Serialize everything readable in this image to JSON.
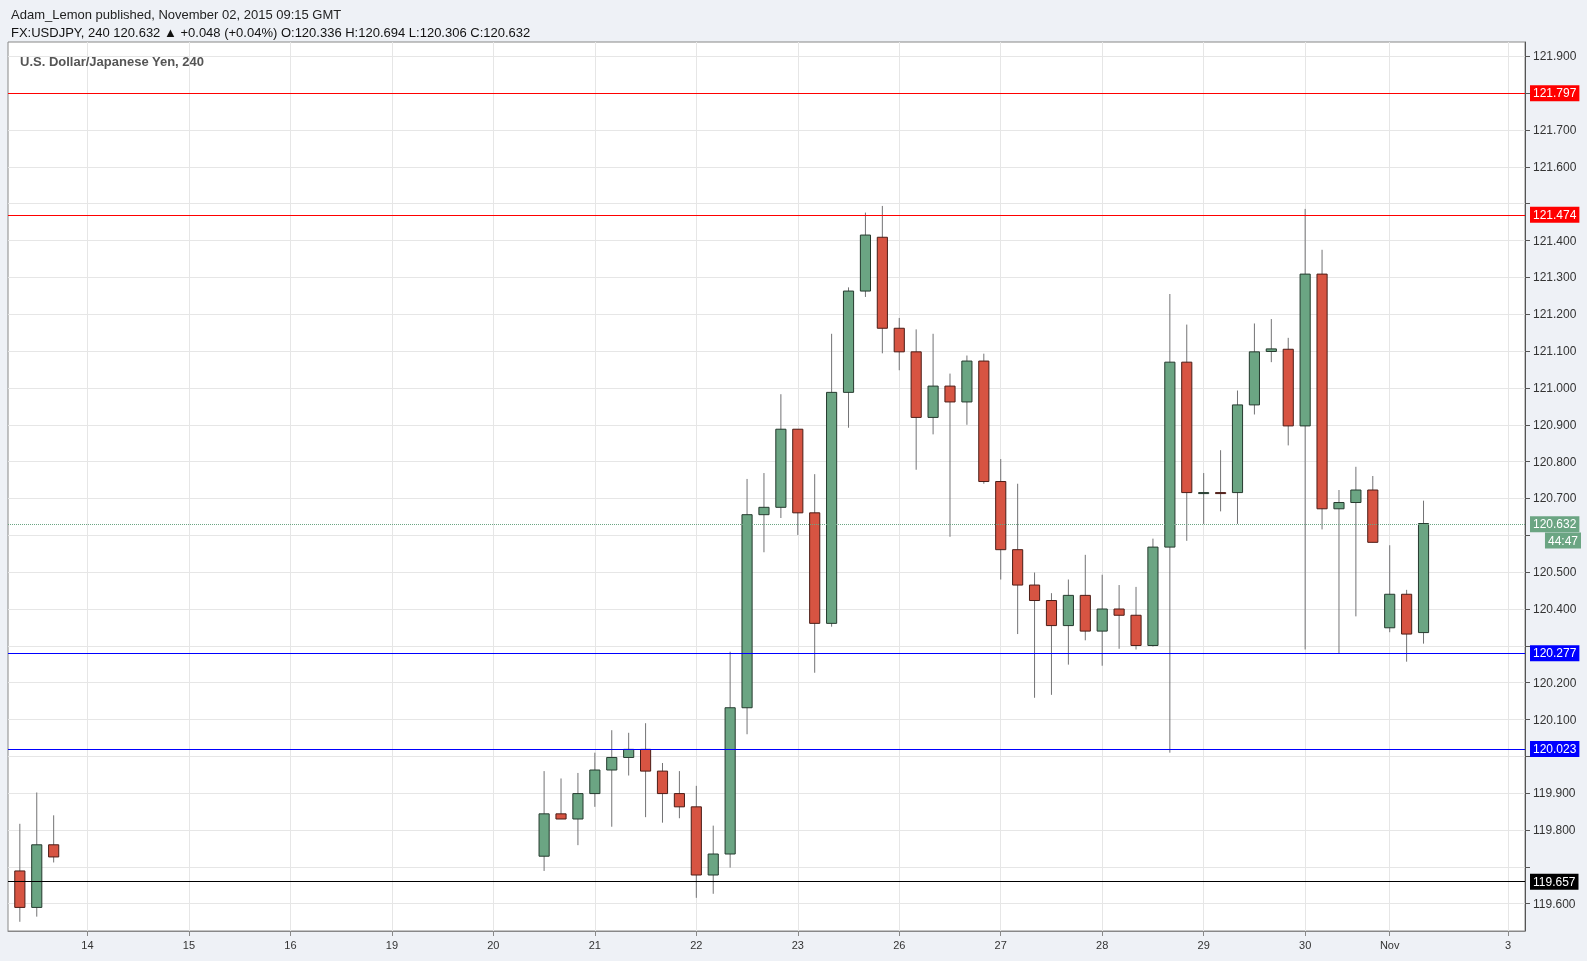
{
  "chart_data": {
    "type": "candlestick",
    "title": "U.S. Dollar/Japanese Yen, 240",
    "subtitle": "FX:USDJPY, 240 120.632 ▲ +0.048 (+0.04%) O:120.336 H:120.694 L:120.306 C:120.632",
    "annotations": [
      "Adam_Lemon published, November 02, 2015 09:15 GMT",
      "44:47"
    ],
    "categories": [
      null,
      null,
      null,
      null,
      "14",
      null,
      null,
      null,
      null,
      null,
      "15",
      null,
      null,
      null,
      null,
      null,
      "16",
      null,
      null,
      null,
      null,
      null,
      "19",
      null,
      null,
      null,
      null,
      null,
      "20",
      null,
      null,
      null,
      null,
      null,
      "21",
      null,
      null,
      null,
      null,
      null,
      "22",
      null,
      null,
      null,
      null,
      null,
      "23",
      null,
      null,
      null,
      null,
      null,
      "26",
      null,
      null,
      null,
      null,
      null,
      "27",
      null,
      null,
      null,
      null,
      null,
      "28",
      null,
      null,
      null,
      null,
      null,
      "29",
      null,
      null,
      null,
      null,
      null,
      "30",
      null,
      null,
      null,
      null,
      "Nov",
      null,
      null,
      null,
      null,
      null,
      null,
      "3"
    ],
    "ohlc": [
      [
        119.689,
        119.817,
        119.551,
        119.59
      ],
      [
        119.59,
        119.902,
        119.565,
        119.76
      ],
      [
        119.76,
        119.84,
        119.712,
        119.727
      ],
      null,
      null,
      null,
      null,
      null,
      null,
      null,
      null,
      null,
      null,
      null,
      null,
      null,
      null,
      null,
      null,
      null,
      null,
      null,
      null,
      null,
      null,
      null,
      null,
      null,
      null,
      null,
      null,
      [
        119.729,
        119.96,
        119.689,
        119.844
      ],
      [
        119.844,
        119.94,
        119.83,
        119.83
      ],
      [
        119.83,
        119.955,
        119.759,
        119.899
      ],
      [
        119.899,
        120.01,
        119.863,
        119.963
      ],
      [
        119.963,
        120.071,
        119.809,
        119.997
      ],
      [
        119.997,
        120.064,
        119.948,
        120.019
      ],
      [
        120.019,
        120.09,
        119.835,
        119.96
      ],
      [
        119.96,
        119.982,
        119.82,
        119.899
      ],
      [
        119.899,
        119.96,
        119.832,
        119.863
      ],
      [
        119.863,
        119.92,
        119.616,
        119.678
      ],
      [
        119.678,
        119.812,
        119.627,
        119.735
      ],
      [
        119.735,
        120.284,
        119.698,
        120.132
      ],
      [
        120.132,
        120.753,
        120.06,
        120.656
      ],
      [
        120.656,
        120.769,
        120.554,
        120.676
      ],
      [
        120.676,
        120.983,
        120.647,
        120.888
      ],
      [
        120.888,
        120.888,
        120.601,
        120.661
      ],
      [
        120.661,
        120.766,
        120.227,
        120.361
      ],
      [
        120.361,
        121.147,
        120.352,
        120.988
      ],
      [
        120.988,
        121.273,
        120.892,
        121.263
      ],
      [
        121.263,
        121.476,
        121.247,
        121.415
      ],
      [
        121.409,
        121.494,
        121.094,
        121.162
      ],
      [
        121.162,
        121.19,
        121.048,
        121.098
      ],
      [
        121.098,
        121.159,
        120.778,
        120.92
      ],
      [
        120.92,
        121.147,
        120.874,
        121.005
      ],
      [
        121.005,
        121.039,
        120.596,
        120.962
      ],
      [
        120.962,
        121.088,
        120.9,
        121.073
      ],
      [
        121.073,
        121.093,
        120.74,
        120.746
      ],
      [
        120.746,
        120.807,
        120.48,
        120.561
      ],
      [
        120.561,
        120.74,
        120.332,
        120.465
      ],
      [
        120.465,
        120.499,
        120.159,
        120.423
      ],
      [
        120.423,
        120.443,
        120.167,
        120.355
      ],
      [
        120.355,
        120.48,
        120.249,
        120.437
      ],
      [
        120.437,
        120.547,
        120.315,
        120.34
      ],
      [
        120.34,
        120.493,
        120.246,
        120.4
      ],
      [
        120.4,
        120.465,
        120.292,
        120.383
      ],
      [
        120.383,
        120.46,
        120.29,
        120.301
      ],
      [
        120.301,
        120.591,
        120.298,
        120.568
      ],
      [
        120.568,
        121.255,
        120.01,
        121.07
      ],
      [
        121.07,
        121.172,
        120.585,
        120.716
      ],
      [
        120.716,
        120.769,
        120.631,
        120.716
      ],
      [
        120.716,
        120.831,
        120.665,
        120.716
      ],
      [
        120.716,
        120.993,
        120.631,
        120.954
      ],
      [
        120.954,
        121.175,
        120.928,
        121.098
      ],
      [
        121.099,
        121.187,
        121.07,
        121.106
      ],
      [
        121.105,
        121.136,
        120.844,
        120.897
      ],
      [
        120.897,
        121.486,
        120.29,
        121.309
      ],
      [
        121.309,
        121.375,
        120.616,
        120.672
      ],
      [
        120.672,
        120.723,
        120.28,
        120.689
      ],
      [
        120.689,
        120.786,
        120.38,
        120.723
      ],
      [
        120.723,
        120.761,
        120.581,
        120.581
      ],
      [
        120.349,
        120.573,
        120.337,
        120.44
      ],
      [
        120.44,
        120.452,
        120.257,
        120.332
      ],
      [
        120.336,
        120.694,
        120.306,
        120.632
      ],
      null,
      null,
      null,
      null,
      null
    ],
    "colors": [
      "#d75442",
      "#6ba583",
      "#d75442",
      null,
      null,
      null,
      null,
      null,
      null,
      null,
      null,
      null,
      null,
      null,
      null,
      null,
      null,
      null,
      null,
      null,
      null,
      null,
      null,
      null,
      null,
      null,
      null,
      null,
      null,
      null,
      null,
      "#6ba583",
      "#d75442",
      "#6ba583",
      "#6ba583",
      "#6ba583",
      "#6ba583",
      "#d75442",
      "#d75442",
      "#d75442",
      "#d75442",
      "#6ba583",
      "#6ba583",
      "#6ba583",
      "#6ba583",
      "#6ba583",
      "#d75442",
      "#d75442",
      "#6ba583",
      "#6ba583",
      "#6ba583",
      "#d75442",
      "#d75442",
      "#d75442",
      "#6ba583",
      "#d75442",
      "#6ba583",
      "#d75442",
      "#d75442",
      "#d75442",
      "#d75442",
      "#d75442",
      "#6ba583",
      "#d75442",
      "#6ba583",
      "#d75442",
      "#d75442",
      "#6ba583",
      "#6ba583",
      "#d75442",
      "#6ba583",
      "#d75442",
      "#6ba583",
      "#6ba583",
      "#6ba583",
      "#d75442",
      "#6ba583",
      "#d75442",
      "#6ba583",
      "#6ba583",
      "#d75442",
      "#6ba583",
      "#d75442",
      "#6ba583",
      null,
      null,
      null,
      null,
      null
    ],
    "ylim": [
      119.526,
      121.939
    ],
    "yticks": [
      {
        "value": 119.6,
        "label": "119.600"
      },
      {
        "value": 119.7,
        "label": null
      },
      {
        "value": 119.8,
        "label": "119.800"
      },
      {
        "value": 119.9,
        "label": "119.900"
      },
      {
        "value": 120.0,
        "label": null
      },
      {
        "value": 120.1,
        "label": "120.100"
      },
      {
        "value": 120.2,
        "label": "120.200"
      },
      {
        "value": 120.3,
        "label": null
      },
      {
        "value": 120.4,
        "label": "120.400"
      },
      {
        "value": 120.5,
        "label": "120.500"
      },
      {
        "value": 120.6,
        "label": null
      },
      {
        "value": 120.7,
        "label": "120.700"
      },
      {
        "value": 120.8,
        "label": "120.800"
      },
      {
        "value": 120.9,
        "label": "120.900"
      },
      {
        "value": 121.0,
        "label": "121.000"
      },
      {
        "value": 121.1,
        "label": "121.100"
      },
      {
        "value": 121.2,
        "label": "121.200"
      },
      {
        "value": 121.3,
        "label": "121.300"
      },
      {
        "value": 121.4,
        "label": "121.400"
      },
      {
        "value": 121.5,
        "label": null
      },
      {
        "value": 121.6,
        "label": "121.600"
      },
      {
        "value": 121.7,
        "label": "121.700"
      },
      {
        "value": 121.8,
        "label": null
      },
      {
        "value": 121.9,
        "label": "121.900"
      }
    ],
    "ref_lines": [
      {
        "axis": "y",
        "value": 121.797,
        "label": "121.797",
        "color": "#ff0000"
      },
      {
        "axis": "y",
        "value": 121.474,
        "label": "121.474",
        "color": "#ff0000"
      },
      {
        "axis": "y",
        "value": 120.632,
        "label": "120.632",
        "color": "#6ba583",
        "line_style": "dotted"
      },
      {
        "axis": "y",
        "value": 120.277,
        "label": "120.277",
        "color": "#0000ff"
      },
      {
        "axis": "y",
        "value": 120.023,
        "label": "120.023",
        "color": "#0000ff"
      },
      {
        "axis": "y",
        "value": 119.657,
        "label": "119.657",
        "color": "#000000"
      }
    ],
    "grid": true
  }
}
